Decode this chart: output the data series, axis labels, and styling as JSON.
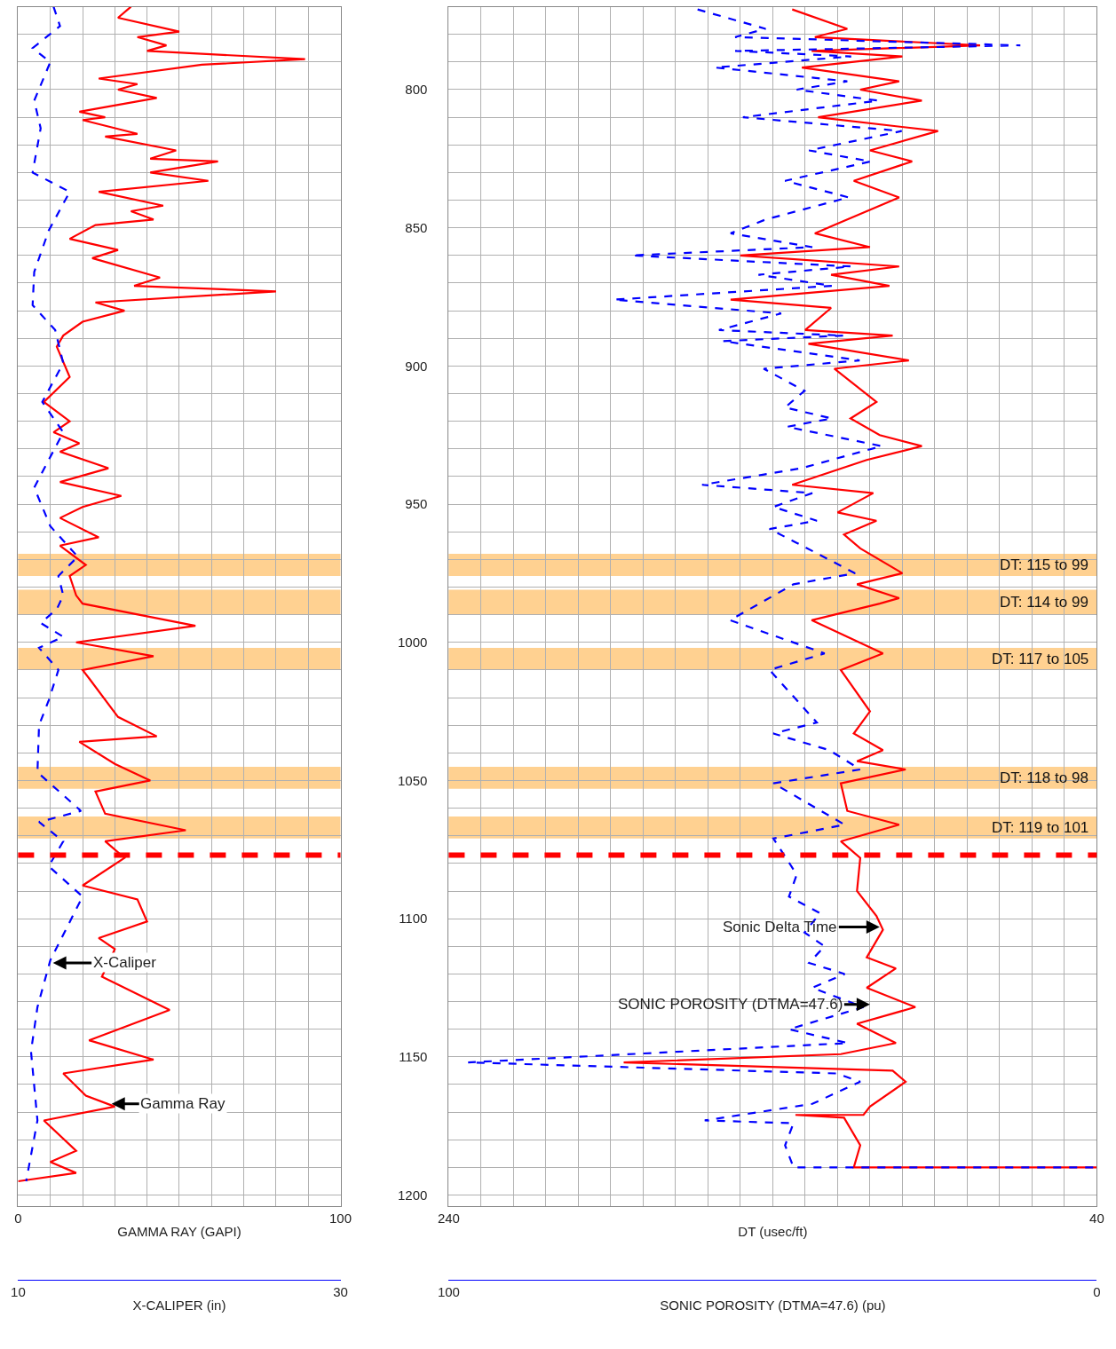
{
  "chart_data": [
    {
      "type": "line",
      "xlabel": "GAMMA RAY (GAPI)",
      "x2label": "X-CALIPER (in)",
      "xlim": [
        0,
        100
      ],
      "x2lim": [
        10,
        30
      ],
      "ylim": [
        1204,
        770
      ],
      "xticks": [
        0,
        {
          "value": 10,
          "label": null
        },
        {
          "value": 20,
          "label": null
        },
        {
          "value": 30,
          "label": null
        },
        {
          "value": 40,
          "label": null
        },
        {
          "value": 50,
          "label": null
        },
        {
          "value": 60,
          "label": null
        },
        {
          "value": 70,
          "label": null
        },
        {
          "value": 80,
          "label": null
        },
        {
          "value": 90,
          "label": null
        },
        100
      ],
      "x2ticks": [
        10,
        30
      ],
      "yticks": [
        {
          "value": 780,
          "label": null
        },
        {
          "value": 790,
          "label": null
        },
        800,
        {
          "value": 810,
          "label": null
        },
        {
          "value": 820,
          "label": null
        },
        {
          "value": 830,
          "label": null
        },
        {
          "value": 840,
          "label": null
        },
        850,
        {
          "value": 860,
          "label": null
        },
        {
          "value": 870,
          "label": null
        },
        {
          "value": 880,
          "label": null
        },
        {
          "value": 890,
          "label": null
        },
        900,
        {
          "value": 910,
          "label": null
        },
        {
          "value": 920,
          "label": null
        },
        {
          "value": 930,
          "label": null
        },
        {
          "value": 940,
          "label": null
        },
        950,
        {
          "value": 960,
          "label": null
        },
        {
          "value": 970,
          "label": null
        },
        {
          "value": 980,
          "label": null
        },
        {
          "value": 990,
          "label": null
        },
        1000,
        {
          "value": 1010,
          "label": null
        },
        {
          "value": 1020,
          "label": null
        },
        {
          "value": 1030,
          "label": null
        },
        {
          "value": 1040,
          "label": null
        },
        1050,
        {
          "value": 1060,
          "label": null
        },
        {
          "value": 1070,
          "label": null
        },
        {
          "value": 1080,
          "label": null
        },
        {
          "value": 1090,
          "label": null
        },
        1100,
        {
          "value": 1110,
          "label": null
        },
        {
          "value": 1120,
          "label": null
        },
        {
          "value": 1130,
          "label": null
        },
        {
          "value": 1140,
          "label": null
        },
        1150,
        {
          "value": 1160,
          "label": null
        },
        {
          "value": 1170,
          "label": null
        },
        {
          "value": 1180,
          "label": null
        },
        {
          "value": 1190,
          "label": null
        },
        1200
      ],
      "tick_labels": "x",
      "grid": true,
      "marker": "none",
      "series": [
        {
          "color": "#ff0000",
          "line_style": "solid",
          "x": [
            35,
            31,
            50,
            37,
            46,
            40,
            89,
            57,
            25,
            37,
            31,
            43,
            19,
            27,
            20,
            37,
            27,
            49,
            41,
            62,
            41,
            59,
            25,
            45,
            35,
            42,
            24,
            16,
            31,
            23,
            44,
            36,
            80,
            24,
            33,
            20,
            14,
            12,
            16,
            8,
            16,
            11,
            19,
            13,
            28,
            13,
            32,
            20,
            13,
            25,
            13,
            21,
            16,
            18,
            20,
            55,
            18,
            42,
            20,
            22,
            31,
            43,
            19,
            30,
            41,
            24,
            27,
            52,
            27,
            33,
            20,
            37,
            40,
            25,
            30,
            26,
            47,
            22,
            42,
            14,
            21,
            30,
            8,
            18,
            10,
            18,
            0
          ],
          "values": [
            770,
            774,
            779,
            781,
            784,
            786,
            789,
            791,
            796,
            798,
            800,
            803,
            808,
            810,
            811,
            816,
            817,
            822,
            825,
            826,
            830,
            833,
            837,
            842,
            844,
            847,
            849,
            854,
            858,
            861,
            868,
            871,
            873,
            877,
            880,
            884,
            889,
            893,
            904,
            913,
            920,
            924,
            928,
            931,
            937,
            942,
            947,
            951,
            955,
            962,
            965,
            972,
            976,
            983,
            986,
            994,
            1000,
            1005,
            1010,
            1013,
            1027,
            1034,
            1036,
            1044,
            1050,
            1054,
            1062,
            1068,
            1072,
            1078,
            1088,
            1093,
            1101,
            1107,
            1111,
            1121,
            1133,
            1144,
            1151,
            1156,
            1164,
            1168,
            1173,
            1184,
            1188,
            1192,
            1195
          ]
        },
        {
          "color": "#0000ff",
          "line_style": "dashed",
          "axis": "x2",
          "x": [
            12.2,
            12.6,
            10.9,
            12.0,
            11.0,
            11.4,
            10.9,
            13.2,
            11.9,
            11.0,
            10.9,
            12.3,
            12.8,
            11.5,
            12.8,
            11.0,
            12.0,
            13.7,
            12.5,
            12.8,
            12.4,
            11.4,
            12.8,
            11.3,
            12.5,
            11.9,
            11.3,
            11.2,
            13.9,
            11.3,
            12.8,
            11.9,
            14.0,
            12.0,
            11.2,
            10.8,
            11.2,
            10.5
          ],
          "values": [
            770,
            777,
            785,
            790,
            804,
            814,
            830,
            837,
            851,
            866,
            878,
            887,
            899,
            913,
            924,
            944,
            958,
            969,
            976,
            983,
            988,
            993,
            998,
            1002,
            1010,
            1021,
            1030,
            1047,
            1061,
            1065,
            1072,
            1081,
            1092,
            1115,
            1132,
            1148,
            1173,
            1195
          ]
        }
      ],
      "bands": [
        {
          "axis": "y",
          "from": 968,
          "to": 976,
          "color": "#ffb347"
        },
        {
          "axis": "y",
          "from": 981,
          "to": 990,
          "color": "#ffb347"
        },
        {
          "axis": "y",
          "from": 1002,
          "to": 1010,
          "color": "#ffb347"
        },
        {
          "axis": "y",
          "from": 1045,
          "to": 1053,
          "color": "#ffb347"
        },
        {
          "axis": "y",
          "from": 1063,
          "to": 1071,
          "color": "#ffb347"
        }
      ],
      "ref_lines": [
        {
          "axis": "y",
          "value": 1077,
          "color": "#ff0000",
          "line_style": "dashed"
        }
      ],
      "annotations": [
        {
          "text": "X-Caliper",
          "x": 10.8,
          "y": 1116
        },
        {
          "text": "Gamma Ray",
          "x": 29,
          "y": 1167
        }
      ]
    },
    {
      "type": "line",
      "xlabel": "DT (usec/ft)",
      "x2label": "SONIC POROSITY (DTMA=47.6) (pu)",
      "xlim": [
        240,
        40
      ],
      "x2lim": [
        100,
        0
      ],
      "ylim": [
        1204,
        770
      ],
      "xticks": [
        240,
        {
          "value": 230,
          "label": null
        },
        {
          "value": 220,
          "label": null
        },
        {
          "value": 210,
          "label": null
        },
        {
          "value": 200,
          "label": null
        },
        {
          "value": 190,
          "label": null
        },
        {
          "value": 180,
          "label": null
        },
        {
          "value": 170,
          "label": null
        },
        {
          "value": 160,
          "label": null
        },
        {
          "value": 150,
          "label": null
        },
        {
          "value": 140,
          "label": null
        },
        {
          "value": 130,
          "label": null
        },
        {
          "value": 120,
          "label": null
        },
        {
          "value": 110,
          "label": null
        },
        {
          "value": 100,
          "label": null
        },
        {
          "value": 90,
          "label": null
        },
        {
          "value": 80,
          "label": null
        },
        {
          "value": 70,
          "label": null
        },
        {
          "value": 60,
          "label": null
        },
        {
          "value": 50,
          "label": null
        },
        40
      ],
      "x2ticks": [
        100,
        0
      ],
      "yticks": [
        {
          "value": 780,
          "label": null
        },
        {
          "value": 790,
          "label": null
        },
        800,
        {
          "value": 810,
          "label": null
        },
        {
          "value": 820,
          "label": null
        },
        {
          "value": 830,
          "label": null
        },
        {
          "value": 840,
          "label": null
        },
        850,
        {
          "value": 860,
          "label": null
        },
        {
          "value": 870,
          "label": null
        },
        {
          "value": 880,
          "label": null
        },
        {
          "value": 890,
          "label": null
        },
        900,
        {
          "value": 910,
          "label": null
        },
        {
          "value": 920,
          "label": null
        },
        {
          "value": 930,
          "label": null
        },
        {
          "value": 940,
          "label": null
        },
        950,
        {
          "value": 960,
          "label": null
        },
        {
          "value": 970,
          "label": null
        },
        {
          "value": 980,
          "label": null
        },
        {
          "value": 990,
          "label": null
        },
        1000,
        {
          "value": 1010,
          "label": null
        },
        {
          "value": 1020,
          "label": null
        },
        {
          "value": 1030,
          "label": null
        },
        {
          "value": 1040,
          "label": null
        },
        1050,
        {
          "value": 1060,
          "label": null
        },
        {
          "value": 1070,
          "label": null
        },
        {
          "value": 1080,
          "label": null
        },
        {
          "value": 1090,
          "label": null
        },
        1100,
        {
          "value": 1110,
          "label": null
        },
        {
          "value": 1120,
          "label": null
        },
        {
          "value": 1130,
          "label": null
        },
        {
          "value": 1140,
          "label": null
        },
        1150,
        {
          "value": 1160,
          "label": null
        },
        {
          "value": 1170,
          "label": null
        },
        {
          "value": 1180,
          "label": null
        },
        {
          "value": 1190,
          "label": null
        },
        1200
      ],
      "grid": true,
      "marker": "none",
      "series": [
        {
          "color": "#ff0000",
          "line_style": "solid",
          "x": [
            134,
            117,
            127,
            76,
            128,
            100,
            131,
            101,
            113,
            94,
            126,
            89,
            110,
            97,
            115,
            101,
            121,
            127,
            110,
            150,
            101,
            122,
            104,
            153,
            122,
            130,
            103,
            129,
            98,
            121,
            108,
            116,
            107,
            94,
            111,
            134,
            109,
            120,
            108,
            118,
            113,
            100,
            114,
            101,
            107,
            128,
            117,
            106,
            119,
            110,
            115,
            106,
            114,
            99,
            119,
            117,
            101,
            119,
            113,
            114,
            108,
            106,
            111,
            102,
            111,
            96,
            114,
            102,
            119,
            186,
            103,
            99,
            110,
            112,
            133,
            118,
            113,
            115,
            40
          ],
          "values": [
            771,
            778,
            781,
            784,
            786,
            788,
            792,
            797,
            800,
            804,
            810,
            815,
            822,
            826,
            833,
            839,
            849,
            852,
            857,
            860,
            864,
            867,
            871,
            876,
            879,
            887,
            889,
            892,
            898,
            901,
            913,
            919,
            925,
            929,
            934,
            943,
            946,
            953,
            956,
            961,
            966,
            975,
            979,
            984,
            986,
            992,
            998,
            1004,
            1010,
            1025,
            1033,
            1039,
            1043,
            1046,
            1051,
            1061,
            1066,
            1072,
            1078,
            1090,
            1099,
            1104,
            1114,
            1118,
            1125,
            1132,
            1138,
            1145,
            1149,
            1152,
            1155,
            1159,
            1168,
            1171,
            1171,
            1172,
            1182,
            1190,
            1190
          ]
        },
        {
          "color": "#0000ff",
          "line_style": "dashed",
          "axis": "x2",
          "x": [
            61.6,
            51.1,
            55.8,
            11.8,
            55.8,
            37.9,
            58.9,
            38.5,
            46.3,
            33.7,
            54.6,
            30.1,
            44.4,
            34.9,
            48.1,
            38.3,
            51.1,
            56.5,
            43.9,
            71.8,
            37.9,
            52.2,
            40.9,
            74.5,
            48.7,
            58.3,
            39.1,
            57.7,
            36.6,
            51.4,
            45.1,
            48.1,
            40.9,
            47.8,
            33.2,
            45.6,
            60.9,
            43.9,
            49.9,
            43.2,
            50.5,
            46.3,
            37.3,
            46.8,
            56.6,
            49.3,
            42.0,
            50.5,
            43.2,
            49.9,
            41.3,
            36.5,
            49.9,
            38.9,
            49.9,
            46.3,
            47.5,
            42.7,
            45.1,
            42.0,
            44.4,
            38.9,
            43.9,
            36.0,
            47.5,
            38.4,
            97.0,
            40.1,
            36.5,
            43.9,
            60.5,
            46.8,
            48.1,
            46.8,
            0
          ],
          "values": [
            771,
            778,
            781,
            784,
            786,
            788,
            792,
            797,
            800,
            804,
            810,
            815,
            822,
            826,
            833,
            839,
            847,
            852,
            857,
            860,
            864,
            867,
            871,
            876,
            881,
            887,
            889,
            891,
            898,
            901,
            909,
            915,
            919,
            922,
            929,
            937,
            943,
            946,
            951,
            956,
            959,
            964,
            975,
            979,
            992,
            998,
            1004,
            1010,
            1029,
            1033,
            1039,
            1046,
            1051,
            1066,
            1071,
            1084,
            1092,
            1098,
            1105,
            1110,
            1116,
            1120,
            1125,
            1132,
            1140,
            1145,
            1152,
            1156,
            1159,
            1167,
            1173,
            1174,
            1182,
            1190,
            1190
          ]
        }
      ],
      "bands": [
        {
          "axis": "y",
          "from": 968,
          "to": 976,
          "color": "#ffb347",
          "label": "DT: 115 to 99"
        },
        {
          "axis": "y",
          "from": 981,
          "to": 990,
          "color": "#ffb347",
          "label": "DT: 114 to 99"
        },
        {
          "axis": "y",
          "from": 1002,
          "to": 1010,
          "color": "#ffb347",
          "label": "DT: 117 to 105"
        },
        {
          "axis": "y",
          "from": 1045,
          "to": 1053,
          "color": "#ffb347",
          "label": "DT: 118 to 98"
        },
        {
          "axis": "y",
          "from": 1063,
          "to": 1071,
          "color": "#ffb347",
          "label": "DT: 119 to 101"
        }
      ],
      "ref_lines": [
        {
          "axis": "y",
          "value": 1077,
          "color": "#ff0000",
          "line_style": "dashed"
        }
      ],
      "annotations": [
        {
          "text": "Sonic Delta Time",
          "x": 107,
          "y": 1103
        },
        {
          "text": "SONIC POROSITY (DTMA=47.6)",
          "x": 110,
          "y": 1131
        }
      ]
    }
  ]
}
